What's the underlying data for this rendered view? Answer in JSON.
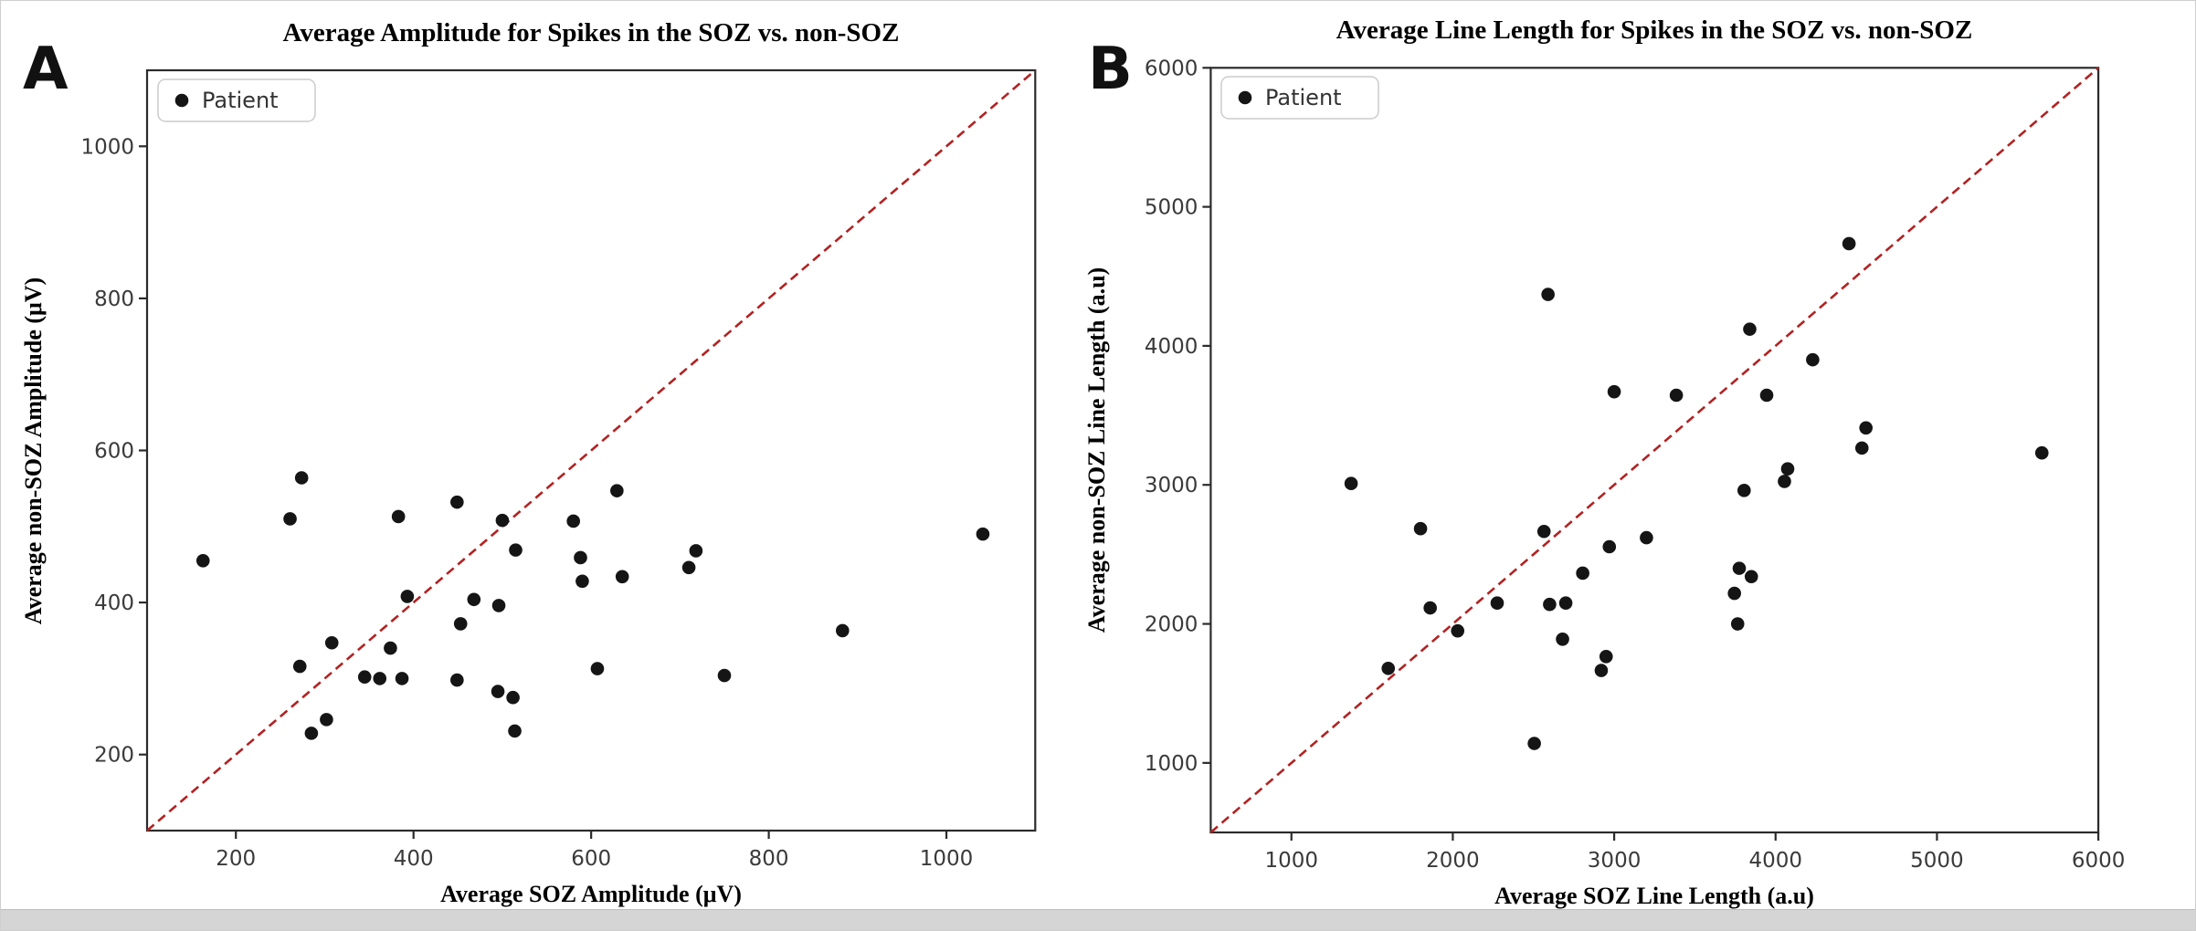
{
  "window": {
    "background": "#ffffff",
    "border_color": "#cfcfcf",
    "bottom_bar_color": "#d5d5d5"
  },
  "chart_data": [
    {
      "type": "scatter",
      "panel_label": "A",
      "title": "Average Amplitude for Spikes in the SOZ vs. non-SOZ",
      "xlabel": "Average SOZ Amplitude (μV)",
      "ylabel": "Average non-SOZ Amplitude (μV)",
      "xlim": [
        100,
        1100
      ],
      "ylim": [
        100,
        1100
      ],
      "xticks": [
        200,
        400,
        600,
        800,
        1000
      ],
      "yticks": [
        200,
        400,
        600,
        800,
        1000
      ],
      "grid": false,
      "legend": {
        "label": "Patient",
        "position": "upper left"
      },
      "identity_line": {
        "color": "#b22222",
        "style": "dashed",
        "from": [
          100,
          100
        ],
        "to": [
          1100,
          1100
        ]
      },
      "marker": {
        "shape": "circle",
        "color": "#151515"
      },
      "points": [
        [
          163,
          455
        ],
        [
          261,
          510
        ],
        [
          272,
          316
        ],
        [
          274,
          564
        ],
        [
          285,
          228
        ],
        [
          302,
          246
        ],
        [
          308,
          347
        ],
        [
          345,
          302
        ],
        [
          362,
          300
        ],
        [
          374,
          340
        ],
        [
          383,
          513
        ],
        [
          387,
          300
        ],
        [
          393,
          408
        ],
        [
          449,
          298
        ],
        [
          449,
          532
        ],
        [
          453,
          372
        ],
        [
          468,
          404
        ],
        [
          495,
          283
        ],
        [
          496,
          396
        ],
        [
          500,
          508
        ],
        [
          512,
          275
        ],
        [
          514,
          231
        ],
        [
          515,
          469
        ],
        [
          580,
          507
        ],
        [
          588,
          459
        ],
        [
          590,
          428
        ],
        [
          607,
          313
        ],
        [
          629,
          547
        ],
        [
          635,
          434
        ],
        [
          710,
          446
        ],
        [
          718,
          468
        ],
        [
          750,
          304
        ],
        [
          883,
          363
        ],
        [
          1041,
          490
        ]
      ]
    },
    {
      "type": "scatter",
      "panel_label": "B",
      "title": "Average Line Length for Spikes in the SOZ vs. non-SOZ",
      "xlabel": "Average SOZ Line Length (a.u)",
      "ylabel": "Average non-SOZ Line Length (a.u)",
      "xlim": [
        500,
        6000
      ],
      "ylim": [
        500,
        6000
      ],
      "xticks": [
        1000,
        2000,
        3000,
        4000,
        5000,
        6000
      ],
      "yticks": [
        1000,
        2000,
        3000,
        4000,
        5000,
        6000
      ],
      "grid": false,
      "legend": {
        "label": "Patient",
        "position": "upper left"
      },
      "identity_line": {
        "color": "#b22222",
        "style": "dashed",
        "from": [
          500,
          500
        ],
        "to": [
          6000,
          6000
        ]
      },
      "marker": {
        "shape": "circle",
        "color": "#151515"
      },
      "points": [
        [
          1370,
          3010
        ],
        [
          1600,
          1680
        ],
        [
          1800,
          2685
        ],
        [
          1860,
          2115
        ],
        [
          2030,
          1950
        ],
        [
          2275,
          2150
        ],
        [
          2505,
          1140
        ],
        [
          2565,
          2665
        ],
        [
          2590,
          4370
        ],
        [
          2600,
          2140
        ],
        [
          2680,
          1890
        ],
        [
          2700,
          2150
        ],
        [
          2805,
          2365
        ],
        [
          2920,
          1665
        ],
        [
          2950,
          1765
        ],
        [
          2970,
          2555
        ],
        [
          3000,
          3670
        ],
        [
          3200,
          2620
        ],
        [
          3385,
          3645
        ],
        [
          3745,
          2220
        ],
        [
          3765,
          2000
        ],
        [
          3775,
          2400
        ],
        [
          3805,
          2960
        ],
        [
          3840,
          4120
        ],
        [
          3850,
          2340
        ],
        [
          3945,
          3645
        ],
        [
          4055,
          3025
        ],
        [
          4075,
          3115
        ],
        [
          4230,
          3900
        ],
        [
          4455,
          4735
        ],
        [
          4535,
          3265
        ],
        [
          4560,
          3410
        ],
        [
          5650,
          3230
        ]
      ]
    }
  ]
}
